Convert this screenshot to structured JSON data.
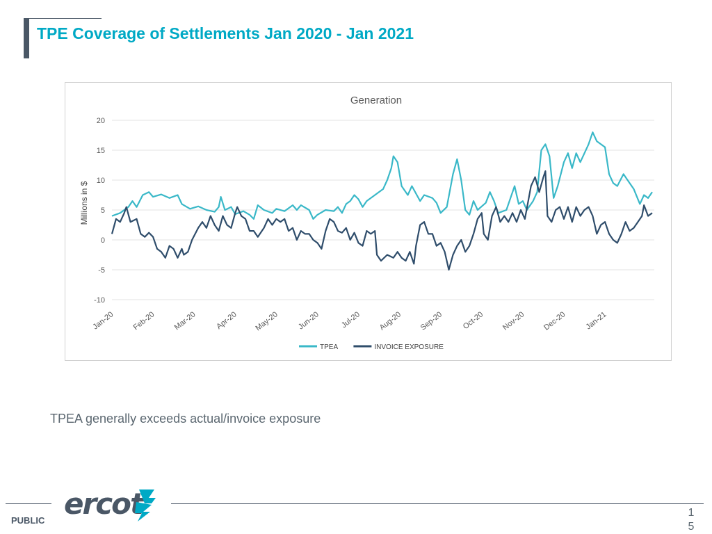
{
  "slide": {
    "title": "TPE Coverage of Settlements Jan 2020 - Jan 2021",
    "caption": "TPEA generally exceeds actual/invoice exposure",
    "footer_label": "PUBLIC",
    "logo_text": "ercot",
    "page_number": "15"
  },
  "colors": {
    "title": "#00a9c5",
    "tpea": "#3ab8c8",
    "invoice": "#2f4d6b",
    "grid": "#e3e3e3"
  },
  "chart_data": {
    "type": "line",
    "title": "Generation",
    "xlabel": "",
    "ylabel": "Millions in $",
    "ylim": [
      -10,
      20
    ],
    "yticks": [
      20,
      15,
      10,
      5,
      0,
      -5,
      -10
    ],
    "x_range": [
      0,
      12.9
    ],
    "categories": [
      "Jan-20",
      "Feb-20",
      "Mar-20",
      "Apr-20",
      "May-20",
      "Jun-20",
      "Jul-20",
      "Aug-20",
      "Sep-20",
      "Oct-20",
      "Nov-20",
      "Dec-20",
      "Jan-21"
    ],
    "legend_position": "bottom",
    "series": [
      {
        "name": "TPEA",
        "color": "#3ab8c8",
        "points": [
          [
            0,
            4
          ],
          [
            0.2,
            4.5
          ],
          [
            0.4,
            5.5
          ],
          [
            0.5,
            6.5
          ],
          [
            0.6,
            5.5
          ],
          [
            0.75,
            7.5
          ],
          [
            0.9,
            8
          ],
          [
            1.0,
            7.2
          ],
          [
            1.2,
            7.6
          ],
          [
            1.4,
            7
          ],
          [
            1.6,
            7.5
          ],
          [
            1.7,
            6
          ],
          [
            1.9,
            5.2
          ],
          [
            2.1,
            5.6
          ],
          [
            2.3,
            5
          ],
          [
            2.5,
            4.7
          ],
          [
            2.6,
            5.5
          ],
          [
            2.65,
            7.2
          ],
          [
            2.75,
            5
          ],
          [
            2.9,
            5.5
          ],
          [
            3.0,
            4.3
          ],
          [
            3.2,
            4.8
          ],
          [
            3.35,
            4.2
          ],
          [
            3.45,
            3.5
          ],
          [
            3.55,
            5.8
          ],
          [
            3.7,
            5
          ],
          [
            3.9,
            4.5
          ],
          [
            4.0,
            5.2
          ],
          [
            4.2,
            4.8
          ],
          [
            4.4,
            5.8
          ],
          [
            4.5,
            5
          ],
          [
            4.6,
            5.8
          ],
          [
            4.8,
            5
          ],
          [
            4.9,
            3.5
          ],
          [
            5.0,
            4.2
          ],
          [
            5.2,
            5
          ],
          [
            5.4,
            4.8
          ],
          [
            5.5,
            5.5
          ],
          [
            5.6,
            4.5
          ],
          [
            5.7,
            6
          ],
          [
            5.8,
            6.5
          ],
          [
            5.9,
            7.5
          ],
          [
            6.0,
            6.8
          ],
          [
            6.1,
            5.5
          ],
          [
            6.2,
            6.5
          ],
          [
            6.4,
            7.5
          ],
          [
            6.6,
            8.5
          ],
          [
            6.7,
            10
          ],
          [
            6.8,
            12
          ],
          [
            6.85,
            14
          ],
          [
            6.95,
            13
          ],
          [
            7.05,
            9
          ],
          [
            7.2,
            7.5
          ],
          [
            7.3,
            9
          ],
          [
            7.5,
            6.5
          ],
          [
            7.6,
            7.5
          ],
          [
            7.8,
            7
          ],
          [
            7.9,
            6.2
          ],
          [
            8.0,
            4.5
          ],
          [
            8.15,
            5.5
          ],
          [
            8.3,
            11
          ],
          [
            8.4,
            13.5
          ],
          [
            8.5,
            10
          ],
          [
            8.6,
            5
          ],
          [
            8.7,
            4.2
          ],
          [
            8.8,
            6.5
          ],
          [
            8.9,
            5
          ],
          [
            9.0,
            5.6
          ],
          [
            9.1,
            6.2
          ],
          [
            9.2,
            8
          ],
          [
            9.3,
            6.5
          ],
          [
            9.4,
            4.5
          ],
          [
            9.6,
            5
          ],
          [
            9.7,
            7
          ],
          [
            9.8,
            9
          ],
          [
            9.9,
            6
          ],
          [
            10.0,
            6.5
          ],
          [
            10.1,
            5
          ],
          [
            10.25,
            6.5
          ],
          [
            10.35,
            8
          ],
          [
            10.45,
            15
          ],
          [
            10.55,
            16
          ],
          [
            10.65,
            14
          ],
          [
            10.75,
            7
          ],
          [
            10.85,
            9
          ],
          [
            11.0,
            13
          ],
          [
            11.1,
            14.5
          ],
          [
            11.2,
            12
          ],
          [
            11.3,
            14.5
          ],
          [
            11.4,
            13
          ],
          [
            11.6,
            16
          ],
          [
            11.7,
            18
          ],
          [
            11.8,
            16.5
          ],
          [
            11.9,
            16
          ],
          [
            12.0,
            15.5
          ],
          [
            12.1,
            11
          ],
          [
            12.2,
            9.5
          ],
          [
            12.3,
            9
          ],
          [
            12.45,
            11
          ],
          [
            12.6,
            9.5
          ],
          [
            12.7,
            8.5
          ],
          [
            12.85,
            6
          ],
          [
            12.95,
            7.5
          ],
          [
            13.05,
            7
          ],
          [
            13.15,
            8
          ]
        ]
      },
      {
        "name": "INVOICE EXPOSURE",
        "color": "#2f4d6b",
        "points": [
          [
            0,
            1
          ],
          [
            0.1,
            3.5
          ],
          [
            0.2,
            3
          ],
          [
            0.3,
            4.5
          ],
          [
            0.35,
            5.5
          ],
          [
            0.45,
            3
          ],
          [
            0.6,
            3.5
          ],
          [
            0.7,
            1
          ],
          [
            0.8,
            0.5
          ],
          [
            0.9,
            1.2
          ],
          [
            1.0,
            0.5
          ],
          [
            1.1,
            -1.5
          ],
          [
            1.2,
            -2
          ],
          [
            1.3,
            -3
          ],
          [
            1.4,
            -1
          ],
          [
            1.5,
            -1.5
          ],
          [
            1.6,
            -3
          ],
          [
            1.7,
            -1.5
          ],
          [
            1.75,
            -2.5
          ],
          [
            1.85,
            -2
          ],
          [
            1.95,
            0
          ],
          [
            2.1,
            2
          ],
          [
            2.2,
            3
          ],
          [
            2.3,
            2
          ],
          [
            2.4,
            4
          ],
          [
            2.5,
            2.5
          ],
          [
            2.6,
            1.5
          ],
          [
            2.7,
            4
          ],
          [
            2.8,
            2.5
          ],
          [
            2.9,
            2
          ],
          [
            3.0,
            4.5
          ],
          [
            3.05,
            5.5
          ],
          [
            3.15,
            4
          ],
          [
            3.25,
            3.5
          ],
          [
            3.35,
            1.5
          ],
          [
            3.45,
            1.5
          ],
          [
            3.55,
            0.5
          ],
          [
            3.7,
            2
          ],
          [
            3.8,
            3.5
          ],
          [
            3.9,
            2.5
          ],
          [
            4.0,
            3.5
          ],
          [
            4.1,
            3
          ],
          [
            4.2,
            3.5
          ],
          [
            4.3,
            1.5
          ],
          [
            4.4,
            2
          ],
          [
            4.5,
            0
          ],
          [
            4.6,
            1.5
          ],
          [
            4.7,
            1
          ],
          [
            4.8,
            1
          ],
          [
            4.9,
            0
          ],
          [
            5.0,
            -0.5
          ],
          [
            5.1,
            -1.5
          ],
          [
            5.2,
            1.5
          ],
          [
            5.3,
            3.5
          ],
          [
            5.4,
            3
          ],
          [
            5.5,
            1.5
          ],
          [
            5.6,
            1.2
          ],
          [
            5.7,
            2
          ],
          [
            5.8,
            0
          ],
          [
            5.9,
            1.2
          ],
          [
            6.0,
            -0.5
          ],
          [
            6.1,
            -1
          ],
          [
            6.2,
            1.5
          ],
          [
            6.3,
            1
          ],
          [
            6.4,
            1.5
          ],
          [
            6.45,
            -2.5
          ],
          [
            6.55,
            -3.5
          ],
          [
            6.7,
            -2.5
          ],
          [
            6.85,
            -3
          ],
          [
            6.95,
            -2
          ],
          [
            7.05,
            -3
          ],
          [
            7.15,
            -3.5
          ],
          [
            7.25,
            -2
          ],
          [
            7.35,
            -4
          ],
          [
            7.4,
            -1
          ],
          [
            7.5,
            2.5
          ],
          [
            7.6,
            3
          ],
          [
            7.7,
            1
          ],
          [
            7.8,
            1
          ],
          [
            7.9,
            -1
          ],
          [
            8.0,
            -0.5
          ],
          [
            8.1,
            -2
          ],
          [
            8.2,
            -5
          ],
          [
            8.3,
            -2.5
          ],
          [
            8.4,
            -1
          ],
          [
            8.5,
            0
          ],
          [
            8.6,
            -2
          ],
          [
            8.7,
            -1
          ],
          [
            8.8,
            1
          ],
          [
            8.9,
            3.5
          ],
          [
            9.0,
            4.5
          ],
          [
            9.05,
            1
          ],
          [
            9.15,
            0
          ],
          [
            9.25,
            4
          ],
          [
            9.35,
            5.5
          ],
          [
            9.45,
            3
          ],
          [
            9.55,
            4
          ],
          [
            9.65,
            3
          ],
          [
            9.75,
            4.5
          ],
          [
            9.85,
            3
          ],
          [
            9.95,
            5
          ],
          [
            10.05,
            3.5
          ],
          [
            10.2,
            9
          ],
          [
            10.3,
            10.5
          ],
          [
            10.4,
            8
          ],
          [
            10.5,
            10.5
          ],
          [
            10.55,
            11.5
          ],
          [
            10.6,
            4
          ],
          [
            10.7,
            3
          ],
          [
            10.8,
            5
          ],
          [
            10.9,
            5.5
          ],
          [
            11.0,
            3.5
          ],
          [
            11.1,
            5.5
          ],
          [
            11.2,
            3
          ],
          [
            11.3,
            5.5
          ],
          [
            11.4,
            4
          ],
          [
            11.5,
            5
          ],
          [
            11.6,
            5.5
          ],
          [
            11.7,
            4
          ],
          [
            11.8,
            1
          ],
          [
            11.9,
            2.5
          ],
          [
            12.0,
            3
          ],
          [
            12.1,
            1
          ],
          [
            12.2,
            0
          ],
          [
            12.3,
            -0.5
          ],
          [
            12.4,
            1
          ],
          [
            12.5,
            3
          ],
          [
            12.6,
            1.5
          ],
          [
            12.7,
            2
          ],
          [
            12.8,
            3
          ],
          [
            12.9,
            4
          ],
          [
            12.95,
            5.8
          ],
          [
            13.05,
            4
          ],
          [
            13.15,
            4.5
          ]
        ]
      }
    ]
  }
}
